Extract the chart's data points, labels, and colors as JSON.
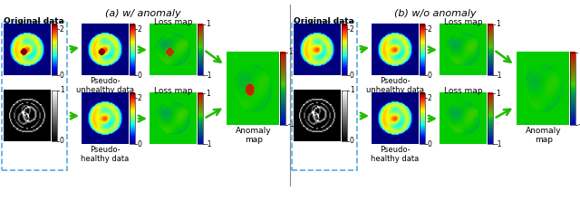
{
  "title_a": "(a) w/ anomaly",
  "title_b": "(b) w/o anomaly",
  "label_original": "Original data",
  "label_pseudo_unhealthy": "Pseudo-\nunhealthy data",
  "label_pseudo_healthy": "Pseudo-\nhealthy data",
  "label_loss_map": "Loss map",
  "label_anomaly_map": "Anomaly\nmap",
  "arrow_color": "#22bb00",
  "dashed_box_color": "#55aadd",
  "divider_color": "#888888",
  "bg_color": "#ffffff"
}
